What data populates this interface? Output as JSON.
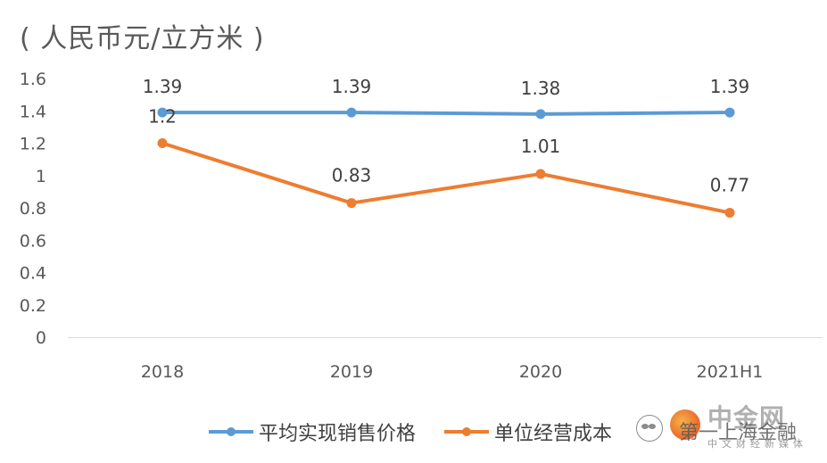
{
  "chart_data": {
    "type": "line",
    "unit_label": "( 人民币元/立方米 )",
    "categories": [
      "2018",
      "2019",
      "2020",
      "2021H1"
    ],
    "ylim": [
      0,
      1.6
    ],
    "yticks": [
      "1.6",
      "1.4",
      "1.2",
      "1",
      "0.8",
      "0.6",
      "0.4",
      "0.2",
      "0"
    ],
    "grid": false,
    "legend_position": "bottom",
    "series": [
      {
        "name": "平均实现销售价格",
        "color": "#5b9bd5",
        "values": [
          1.39,
          1.39,
          1.38,
          1.39
        ],
        "labels": [
          "1.39",
          "1.39",
          "1.38",
          "1.39"
        ]
      },
      {
        "name": "单位经营成本",
        "color": "#ed7d31",
        "values": [
          1.2,
          0.83,
          1.01,
          0.77
        ],
        "labels": [
          "1.2",
          "0.83",
          "1.01",
          "0.77"
        ]
      }
    ]
  },
  "watermark": {
    "brand": "中金网",
    "overlay_text": "第一上海金融",
    "tagline": "中文财经新媒体"
  }
}
